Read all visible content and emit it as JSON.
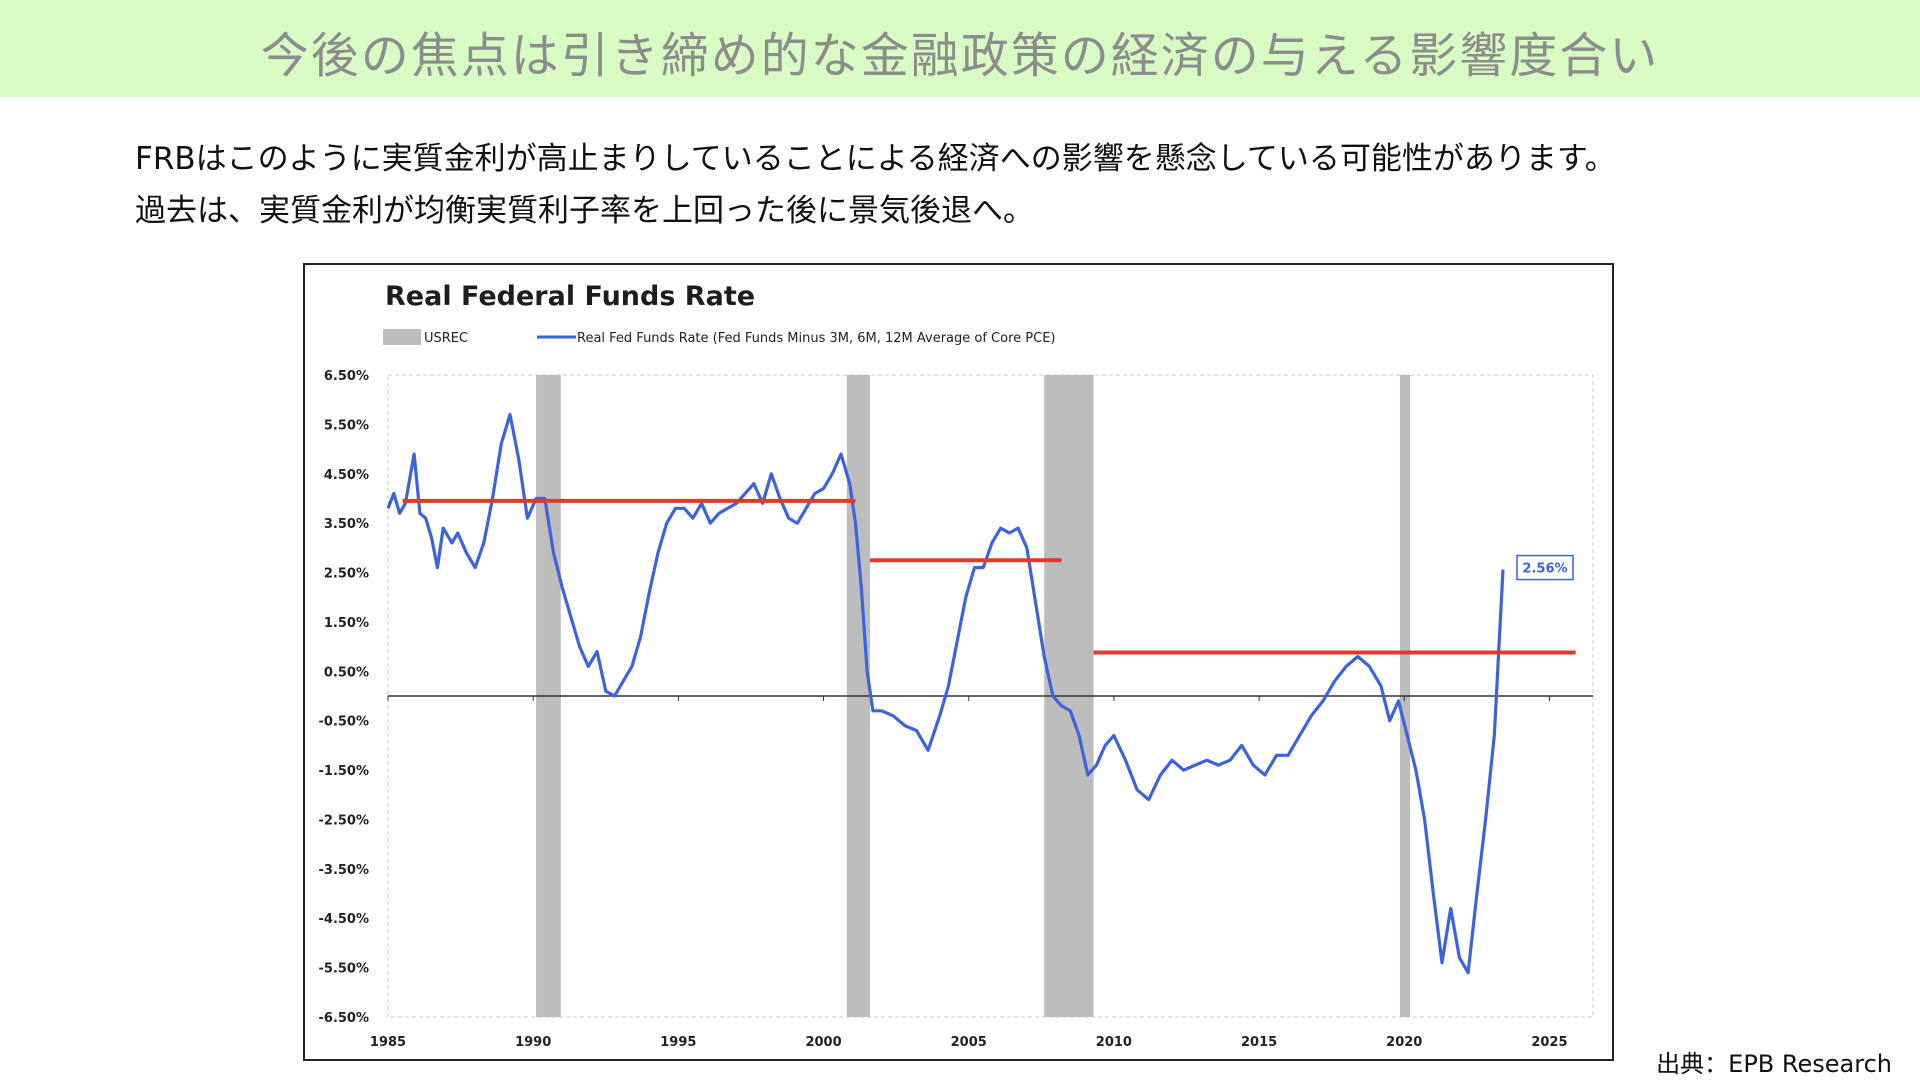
{
  "header": {
    "title": "今後の焦点は引き締め的な金融政策の経済の与える影響度合い",
    "band_color": "#d9fbc4"
  },
  "body": {
    "line1": "FRBはこのように実質金利が高止まりしていることによる経済への影響を懸念している可能性があります。",
    "line2": "過去は、実質金利が均衡実質利子率を上回った後に景気後退へ。"
  },
  "source": "出典：EPB Research",
  "chart_data": {
    "type": "line",
    "title": "Real Federal Funds Rate",
    "legend": {
      "placement": "top-left",
      "items": [
        {
          "label": "USREC",
          "color": "#bdbdbd"
        },
        {
          "label": "Real Fed Funds Rate (Fed Funds Minus 3M, 6M, 12M Average of Core PCE)",
          "color": "#3b63e0"
        }
      ]
    },
    "xlim": [
      1985,
      2026.5
    ],
    "ylim": [
      -6.5,
      6.5
    ],
    "x_ticks": [
      1985,
      1990,
      1995,
      2000,
      2005,
      2010,
      2015,
      2020,
      2025
    ],
    "y_ticks": [
      6.5,
      5.5,
      4.5,
      3.5,
      2.5,
      1.5,
      0.5,
      -0.5,
      -1.5,
      -2.5,
      -3.5,
      -4.5,
      -5.5,
      -6.5
    ],
    "y_tick_labels": [
      "6.50%",
      "5.50%",
      "4.50%",
      "3.50%",
      "2.50%",
      "1.50%",
      "0.50%",
      "-0.50%",
      "-1.50%",
      "-2.50%",
      "-3.50%",
      "-4.50%",
      "-5.50%",
      "-6.50%"
    ],
    "grid": false,
    "recessions": [
      [
        1990.1,
        1990.95
      ],
      [
        2000.8,
        2001.6
      ],
      [
        2007.6,
        2009.3
      ],
      [
        2019.85,
        2020.2
      ]
    ],
    "recession_color": "#bdbdbd",
    "series": [
      {
        "name": "Real Fed Funds Rate (Fed Funds Minus 3M, 6M, 12M Average of Core PCE)",
        "color": "#3b63e0",
        "x": [
          1985.0,
          1985.2,
          1985.4,
          1985.6,
          1985.9,
          1986.1,
          1986.3,
          1986.5,
          1986.7,
          1986.9,
          1987.2,
          1987.4,
          1987.7,
          1988.0,
          1988.3,
          1988.6,
          1988.9,
          1989.2,
          1989.5,
          1989.8,
          1990.1,
          1990.4,
          1990.7,
          1991.0,
          1991.3,
          1991.6,
          1991.9,
          1992.2,
          1992.5,
          1992.8,
          1993.1,
          1993.4,
          1993.7,
          1994.0,
          1994.3,
          1994.6,
          1994.9,
          1995.2,
          1995.5,
          1995.8,
          1996.1,
          1996.4,
          1996.7,
          1997.0,
          1997.3,
          1997.6,
          1997.9,
          1998.2,
          1998.5,
          1998.8,
          1999.1,
          1999.4,
          1999.7,
          2000.0,
          2000.3,
          2000.6,
          2000.9,
          2001.1,
          2001.3,
          2001.5,
          2001.7,
          2002.0,
          2002.4,
          2002.8,
          2003.2,
          2003.6,
          2004.0,
          2004.3,
          2004.6,
          2004.9,
          2005.2,
          2005.5,
          2005.8,
          2006.1,
          2006.4,
          2006.7,
          2007.0,
          2007.3,
          2007.6,
          2007.9,
          2008.2,
          2008.5,
          2008.8,
          2009.1,
          2009.4,
          2009.7,
          2010.0,
          2010.4,
          2010.8,
          2011.2,
          2011.6,
          2012.0,
          2012.4,
          2012.8,
          2013.2,
          2013.6,
          2014.0,
          2014.4,
          2014.8,
          2015.2,
          2015.6,
          2016.0,
          2016.4,
          2016.8,
          2017.2,
          2017.6,
          2018.0,
          2018.4,
          2018.8,
          2019.2,
          2019.5,
          2019.8,
          2020.1,
          2020.4,
          2020.7,
          2021.0,
          2021.3,
          2021.6,
          2021.9,
          2022.2,
          2022.5,
          2022.8,
          2023.1,
          2023.4
        ],
        "y": [
          3.8,
          4.1,
          3.7,
          3.9,
          4.9,
          3.7,
          3.6,
          3.2,
          2.6,
          3.4,
          3.1,
          3.3,
          2.9,
          2.6,
          3.1,
          4.0,
          5.1,
          5.7,
          4.8,
          3.6,
          4.0,
          4.0,
          2.9,
          2.2,
          1.6,
          1.0,
          0.6,
          0.9,
          0.1,
          0.0,
          0.3,
          0.6,
          1.2,
          2.1,
          2.9,
          3.5,
          3.8,
          3.8,
          3.6,
          3.9,
          3.5,
          3.7,
          3.8,
          3.9,
          4.1,
          4.3,
          3.9,
          4.5,
          4.0,
          3.6,
          3.5,
          3.8,
          4.1,
          4.2,
          4.5,
          4.9,
          4.3,
          3.5,
          2.2,
          0.5,
          -0.3,
          -0.3,
          -0.4,
          -0.6,
          -0.7,
          -1.1,
          -0.4,
          0.2,
          1.1,
          2.0,
          2.6,
          2.6,
          3.1,
          3.4,
          3.3,
          3.4,
          3.0,
          1.9,
          0.8,
          0.0,
          -0.2,
          -0.3,
          -0.8,
          -1.6,
          -1.4,
          -1.0,
          -0.8,
          -1.3,
          -1.9,
          -2.1,
          -1.6,
          -1.3,
          -1.5,
          -1.4,
          -1.3,
          -1.4,
          -1.3,
          -1.0,
          -1.4,
          -1.6,
          -1.2,
          -1.2,
          -0.8,
          -0.4,
          -0.1,
          0.3,
          0.6,
          0.8,
          0.6,
          0.2,
          -0.5,
          -0.1,
          -0.8,
          -1.5,
          -2.5,
          -4.0,
          -5.4,
          -4.3,
          -5.3,
          -5.6,
          -4.0,
          -2.5,
          -0.8,
          2.56
        ]
      },
      {
        "name": "",
        "color": "#e03a2b",
        "segments": [
          {
            "x": [
              1985.5,
              2001.1
            ],
            "y": [
              3.95,
              3.95
            ]
          },
          {
            "x": [
              2001.6,
              2008.2
            ],
            "y": [
              2.75,
              2.75
            ]
          },
          {
            "x": [
              2009.3,
              2025.9
            ],
            "y": [
              0.88,
              0.88
            ]
          }
        ]
      }
    ],
    "annotations": [
      {
        "text": "2.56%",
        "x": 2023.4,
        "y": 2.56,
        "color": "#3b63e0"
      }
    ]
  }
}
